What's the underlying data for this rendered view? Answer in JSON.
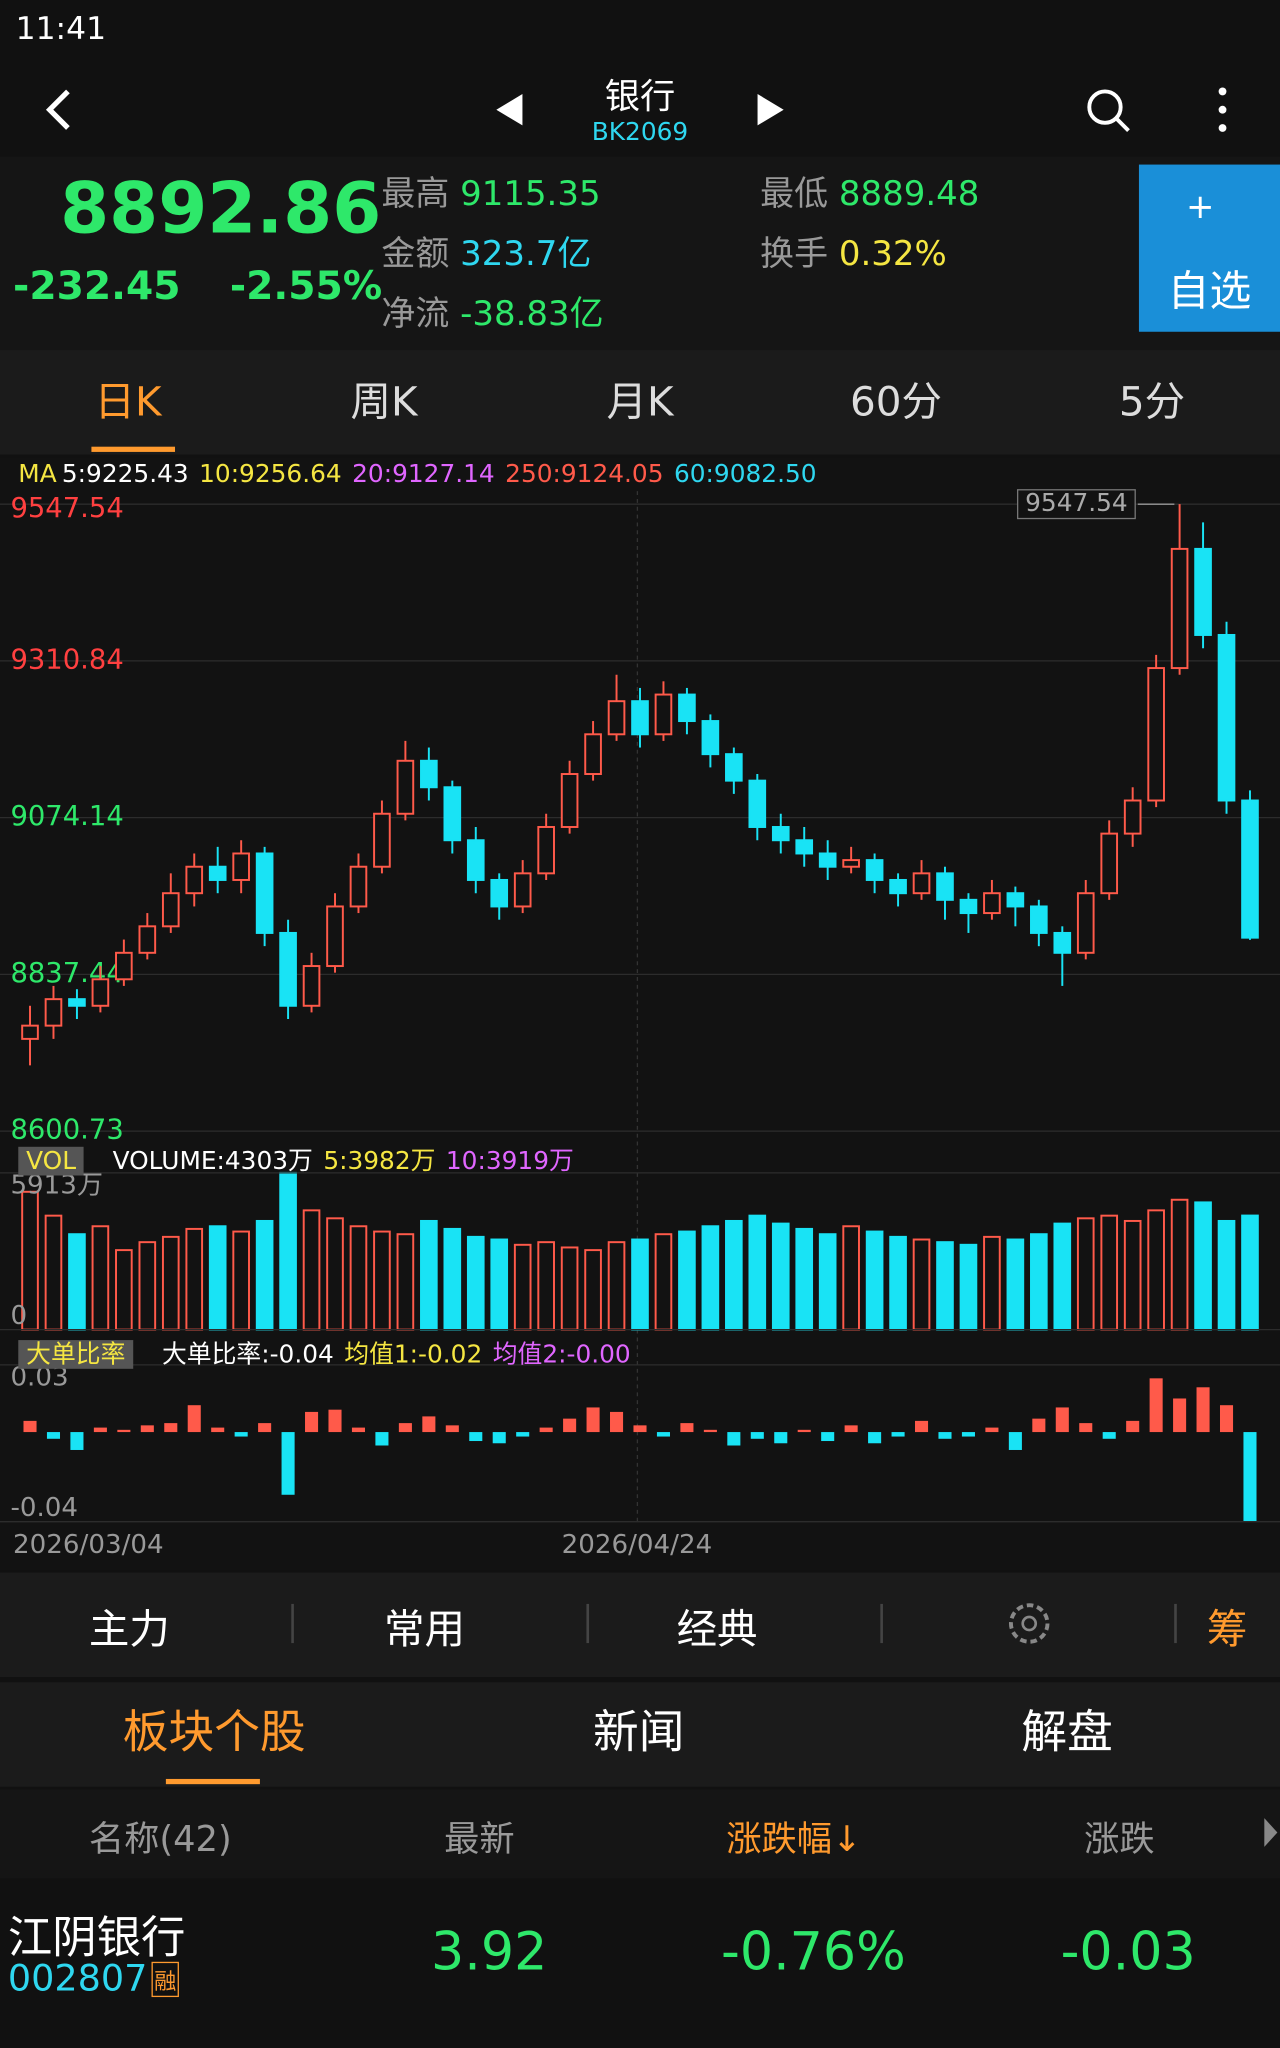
{
  "status_bar": {
    "time": "11:41"
  },
  "nav": {
    "title": "银行",
    "code": "BK2069"
  },
  "quote": {
    "price": "8892.86",
    "change": "-232.45",
    "change_pct": "-2.55%",
    "high_label": "最高",
    "high": "9115.35",
    "low_label": "最低",
    "low": "8889.48",
    "amount_label": "金额",
    "amount": "323.7亿",
    "turnover_label": "换手",
    "turnover": "0.32%",
    "netflow_label": "净流",
    "netflow": "-38.83亿",
    "watch_button": "自选"
  },
  "period_tabs": [
    "日K",
    "周K",
    "月K",
    "60分",
    "5分"
  ],
  "indicators": {
    "ma_label": "MA",
    "ma": [
      {
        "text": "5:9225.43",
        "color": "#ffffff"
      },
      {
        "text": "10:9256.64",
        "color": "#f5e642"
      },
      {
        "text": "20:9127.14",
        "color": "#e066ff"
      },
      {
        "text": "250:9124.05",
        "color": "#ff5a4a"
      },
      {
        "text": "60:9082.50",
        "color": "#2fd7f0"
      }
    ],
    "vol_label": "VOL",
    "vol": [
      {
        "text": "VOLUME:4303万",
        "color": "#ffffff"
      },
      {
        "text": "5:3982万",
        "color": "#f5e642"
      },
      {
        "text": "10:3919万",
        "color": "#e066ff"
      }
    ],
    "ratio_label": "大单比率",
    "ratio": [
      {
        "text": "大单比率:-0.04",
        "color": "#ffffff"
      },
      {
        "text": "均值1:-0.02",
        "color": "#f5e642"
      },
      {
        "text": "均值2:-0.00",
        "color": "#e066ff"
      }
    ]
  },
  "chart_data": {
    "type": "candlestick",
    "up_color": "#ff5a4a",
    "down_color": "#19e3f5",
    "ylim": [
      8600.73,
      9547.54
    ],
    "yticks": [
      8600.73,
      8837.44,
      9074.14,
      9310.84,
      9547.54
    ],
    "ytick_colors": [
      "#2ee86a",
      "#2ee86a",
      "#2ee86a",
      "#ff4040",
      "#ff4040"
    ],
    "max_label": "9547.54",
    "dates": [
      "2026/03/04",
      "2026/04/24"
    ],
    "grid": true,
    "candles": [
      [
        8740,
        8790,
        8700,
        8760
      ],
      [
        8760,
        8820,
        8740,
        8800
      ],
      [
        8800,
        8815,
        8770,
        8790
      ],
      [
        8790,
        8850,
        8780,
        8830
      ],
      [
        8830,
        8890,
        8820,
        8870
      ],
      [
        8870,
        8930,
        8860,
        8910
      ],
      [
        8910,
        8990,
        8900,
        8960
      ],
      [
        8960,
        9020,
        8940,
        9000
      ],
      [
        9000,
        9030,
        8960,
        8980
      ],
      [
        8980,
        9040,
        8960,
        9020
      ],
      [
        9020,
        9030,
        8880,
        8900
      ],
      [
        8900,
        8920,
        8770,
        8790
      ],
      [
        8790,
        8870,
        8780,
        8850
      ],
      [
        8850,
        8960,
        8840,
        8940
      ],
      [
        8940,
        9020,
        8930,
        9000
      ],
      [
        9000,
        9100,
        8990,
        9080
      ],
      [
        9080,
        9190,
        9070,
        9160
      ],
      [
        9160,
        9180,
        9100,
        9120
      ],
      [
        9120,
        9130,
        9020,
        9040
      ],
      [
        9040,
        9060,
        8960,
        8980
      ],
      [
        8980,
        8990,
        8920,
        8940
      ],
      [
        8940,
        9010,
        8930,
        8990
      ],
      [
        8990,
        9080,
        8980,
        9060
      ],
      [
        9060,
        9160,
        9050,
        9140
      ],
      [
        9140,
        9220,
        9130,
        9200
      ],
      [
        9200,
        9290,
        9190,
        9250
      ],
      [
        9250,
        9270,
        9180,
        9200
      ],
      [
        9200,
        9280,
        9190,
        9260
      ],
      [
        9260,
        9270,
        9200,
        9220
      ],
      [
        9220,
        9230,
        9150,
        9170
      ],
      [
        9170,
        9180,
        9110,
        9130
      ],
      [
        9130,
        9140,
        9040,
        9060
      ],
      [
        9060,
        9080,
        9020,
        9040
      ],
      [
        9040,
        9060,
        9000,
        9020
      ],
      [
        9020,
        9040,
        8980,
        9000
      ],
      [
        9000,
        9030,
        8990,
        9010
      ],
      [
        9010,
        9020,
        8960,
        8980
      ],
      [
        8980,
        8990,
        8940,
        8960
      ],
      [
        8960,
        9010,
        8950,
        8990
      ],
      [
        8990,
        9000,
        8920,
        8950
      ],
      [
        8950,
        8960,
        8900,
        8930
      ],
      [
        8930,
        8980,
        8920,
        8960
      ],
      [
        8960,
        8970,
        8910,
        8940
      ],
      [
        8940,
        8950,
        8880,
        8900
      ],
      [
        8900,
        8910,
        8820,
        8870
      ],
      [
        8870,
        8980,
        8860,
        8960
      ],
      [
        8960,
        9070,
        8950,
        9050
      ],
      [
        9050,
        9120,
        9030,
        9100
      ],
      [
        9100,
        9320,
        9090,
        9300
      ],
      [
        9300,
        9547.54,
        9290,
        9480
      ],
      [
        9480,
        9520,
        9330,
        9350
      ],
      [
        9350,
        9370,
        9080,
        9100
      ],
      [
        9100,
        9115.35,
        8889.48,
        8892.86
      ]
    ],
    "volume": {
      "ylim": [
        0,
        5913
      ],
      "yticks": [
        0,
        {
          "value": 5913,
          "label": "5913万"
        }
      ],
      "values": [
        5200,
        4300,
        3600,
        3900,
        3000,
        3300,
        3500,
        3800,
        3900,
        3700,
        4100,
        5913,
        4500,
        4200,
        3900,
        3700,
        3600,
        4100,
        3800,
        3500,
        3400,
        3200,
        3300,
        3100,
        3000,
        3300,
        3400,
        3600,
        3700,
        3900,
        4100,
        4300,
        4000,
        3800,
        3600,
        3900,
        3700,
        3500,
        3400,
        3300,
        3200,
        3500,
        3400,
        3600,
        4000,
        4200,
        4300,
        4100,
        4500,
        4900,
        4800,
        4100,
        4303
      ]
    },
    "ratio": {
      "ylim": [
        -0.04,
        0.03
      ],
      "yticks": [
        -0.04,
        0.03
      ],
      "values": [
        0.005,
        -0.003,
        -0.008,
        0.002,
        0.001,
        0.003,
        0.004,
        0.012,
        0.002,
        -0.002,
        0.004,
        -0.028,
        0.009,
        0.01,
        0.002,
        -0.006,
        0.004,
        0.007,
        0.003,
        -0.004,
        -0.005,
        -0.002,
        0.002,
        0.006,
        0.011,
        0.009,
        0.003,
        -0.002,
        0.004,
        0.001,
        -0.006,
        -0.003,
        -0.005,
        0.001,
        -0.004,
        0.003,
        -0.005,
        -0.002,
        0.005,
        -0.003,
        -0.002,
        0.002,
        -0.008,
        0.006,
        0.011,
        0.004,
        -0.003,
        0.005,
        0.024,
        0.015,
        0.02,
        0.012,
        -0.04
      ]
    }
  },
  "toolbar": [
    "主力",
    "常用",
    "经典",
    "筹"
  ],
  "section_tabs": [
    "板块个股",
    "新闻",
    "解盘"
  ],
  "table": {
    "headers": [
      "名称(42)",
      "最新",
      "涨跌幅↓",
      "涨跌"
    ],
    "rows": [
      {
        "name": "江阴银行",
        "code": "002807",
        "tag": "融",
        "price": "3.92",
        "change_pct": "-0.76%",
        "change": "-0.03"
      }
    ]
  }
}
